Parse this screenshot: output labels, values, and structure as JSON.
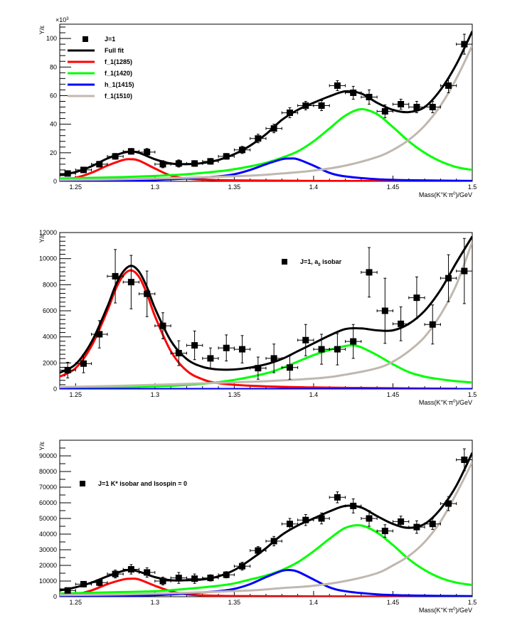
{
  "chart_data": [
    {
      "type": "scatter",
      "title": "",
      "xlabel": "Mass(K^{+}K^{-}π^{0})/GeV",
      "ylabel": "Y/ε",
      "y_exponent_label": "×10^{3}",
      "xlim": [
        1.24,
        1.5
      ],
      "ylim": [
        0,
        110
      ],
      "x_ticks": [
        "1.25",
        "1.3",
        "1.35",
        "1.4",
        "1.45",
        "1.5"
      ],
      "y_ticks": [
        "0",
        "20",
        "40",
        "60",
        "80",
        "100"
      ],
      "legend_position": "top-left",
      "legend": [
        {
          "label": "J=1",
          "kind": "marker"
        },
        {
          "label": "Full fit",
          "kind": "line",
          "color": "#000000"
        },
        {
          "label": "f_1(1285)",
          "kind": "line",
          "color": "#ff0000"
        },
        {
          "label": "f_1(1420)",
          "kind": "line",
          "color": "#00ff00"
        },
        {
          "label": "h_1(1415)",
          "kind": "line",
          "color": "#0000ff"
        },
        {
          "label": "f_1(1510)",
          "kind": "line",
          "color": "#c0b8b0"
        }
      ],
      "points": {
        "name": "J=1",
        "x": [
          1.245,
          1.255,
          1.265,
          1.275,
          1.285,
          1.295,
          1.305,
          1.315,
          1.325,
          1.335,
          1.345,
          1.355,
          1.365,
          1.375,
          1.385,
          1.395,
          1.405,
          1.415,
          1.425,
          1.435,
          1.445,
          1.455,
          1.465,
          1.475,
          1.485,
          1.495
        ],
        "y": [
          5.5,
          8,
          12,
          17.5,
          21,
          20.5,
          12,
          12.5,
          12.5,
          14,
          17.5,
          22,
          30,
          37,
          48,
          53,
          53,
          67,
          62,
          59,
          49,
          54,
          52,
          52,
          67,
          96
        ],
        "yerr": [
          1.5,
          1.5,
          2,
          2,
          2,
          2.5,
          2.5,
          2.5,
          2,
          2,
          2,
          2.5,
          3,
          3,
          3.5,
          3,
          3.5,
          3.5,
          4.5,
          5,
          4.5,
          3.5,
          4,
          4,
          5,
          7
        ]
      },
      "series": [
        {
          "name": "Full fit",
          "color": "#000000",
          "x": [
            1.24,
            1.25,
            1.26,
            1.27,
            1.28,
            1.285,
            1.29,
            1.3,
            1.31,
            1.32,
            1.33,
            1.34,
            1.35,
            1.36,
            1.37,
            1.38,
            1.39,
            1.4,
            1.41,
            1.42,
            1.43,
            1.44,
            1.45,
            1.46,
            1.47,
            1.48,
            1.49,
            1.5
          ],
          "y": [
            4.5,
            6.5,
            10.5,
            16,
            20,
            20.8,
            20,
            15.5,
            12.5,
            12,
            12.8,
            15,
            19,
            25,
            33,
            43,
            50,
            55,
            59.5,
            63,
            61.5,
            55,
            50,
            48.5,
            52,
            64,
            82,
            105
          ]
        },
        {
          "name": "f_1(1285)",
          "color": "#ff0000",
          "x": [
            1.24,
            1.25,
            1.26,
            1.27,
            1.28,
            1.285,
            1.29,
            1.3,
            1.31,
            1.32,
            1.33,
            1.35,
            1.4,
            1.45,
            1.49
          ],
          "y": [
            1,
            2.5,
            6,
            11,
            15,
            15.5,
            14.5,
            9,
            4,
            2,
            1.2,
            0.7,
            0.3,
            0.2,
            0.1
          ]
        },
        {
          "name": "f_1(1420)",
          "color": "#00ff00",
          "x": [
            1.24,
            1.26,
            1.28,
            1.3,
            1.32,
            1.34,
            1.35,
            1.36,
            1.37,
            1.38,
            1.39,
            1.4,
            1.41,
            1.42,
            1.43,
            1.44,
            1.45,
            1.46,
            1.47,
            1.48,
            1.49,
            1.5
          ],
          "y": [
            2,
            2.5,
            3,
            3.8,
            5,
            7,
            8.5,
            10.5,
            13,
            16.5,
            21,
            28,
            37,
            46,
            50.5,
            47,
            38,
            28,
            20,
            14,
            10,
            8
          ]
        },
        {
          "name": "h_1(1415)",
          "color": "#0000ff",
          "x": [
            1.24,
            1.28,
            1.3,
            1.32,
            1.34,
            1.35,
            1.36,
            1.37,
            1.38,
            1.385,
            1.39,
            1.4,
            1.41,
            1.42,
            1.44,
            1.46,
            1.5
          ],
          "y": [
            0.2,
            0.5,
            1,
            2,
            3.5,
            5,
            8,
            12,
            15.5,
            16,
            15.5,
            11,
            6,
            3.5,
            1.5,
            0.8,
            0.3
          ]
        },
        {
          "name": "f_1(1510)",
          "color": "#c0b8b0",
          "x": [
            1.24,
            1.28,
            1.32,
            1.36,
            1.38,
            1.4,
            1.42,
            1.44,
            1.45,
            1.46,
            1.47,
            1.48,
            1.49,
            1.5
          ],
          "y": [
            1,
            1.5,
            2.5,
            4,
            5.5,
            7.5,
            11,
            17,
            22,
            29,
            39,
            53,
            72,
            95
          ]
        }
      ]
    },
    {
      "type": "scatter",
      "title": "",
      "xlabel": "Mass(K^{+}K^{-}π^{0})/GeV",
      "ylabel": "Y/ε",
      "xlim": [
        1.24,
        1.5
      ],
      "ylim": [
        0,
        12000
      ],
      "x_ticks": [
        "1.25",
        "1.3",
        "1.35",
        "1.4",
        "1.45",
        "1.5"
      ],
      "y_ticks": [
        "0",
        "2000",
        "4000",
        "6000",
        "8000",
        "10000",
        "12000"
      ],
      "legend_position": "top-right",
      "legend": [
        {
          "label": "J=1, a_{0} isobar",
          "kind": "marker"
        }
      ],
      "points": {
        "name": "J=1, a0 isobar",
        "x": [
          1.245,
          1.255,
          1.265,
          1.275,
          1.285,
          1.295,
          1.305,
          1.315,
          1.325,
          1.335,
          1.345,
          1.355,
          1.365,
          1.375,
          1.385,
          1.395,
          1.405,
          1.415,
          1.425,
          1.435,
          1.445,
          1.455,
          1.465,
          1.475,
          1.485,
          1.495
        ],
        "y": [
          1450,
          1950,
          4200,
          8650,
          8200,
          7300,
          4850,
          2750,
          3350,
          2350,
          3150,
          3050,
          1600,
          2350,
          1650,
          3750,
          3050,
          3050,
          3650,
          8950,
          6000,
          5000,
          7000,
          4950,
          8500,
          9050
        ],
        "yerr": [
          600,
          700,
          1050,
          2050,
          2050,
          1750,
          1000,
          950,
          1100,
          800,
          1000,
          1050,
          850,
          1100,
          900,
          1200,
          1150,
          1200,
          1300,
          1900,
          2500,
          1300,
          1600,
          1500,
          1800,
          2500
        ]
      },
      "series": [
        {
          "name": "Full fit",
          "color": "#000000",
          "x": [
            1.24,
            1.25,
            1.26,
            1.27,
            1.275,
            1.28,
            1.285,
            1.29,
            1.295,
            1.3,
            1.31,
            1.32,
            1.33,
            1.34,
            1.35,
            1.36,
            1.37,
            1.38,
            1.39,
            1.4,
            1.41,
            1.42,
            1.43,
            1.44,
            1.45,
            1.46,
            1.47,
            1.48,
            1.49,
            1.5
          ],
          "y": [
            1250,
            1900,
            3600,
            6300,
            7900,
            9000,
            9450,
            9000,
            7800,
            6200,
            3700,
            2300,
            1700,
            1500,
            1500,
            1650,
            1900,
            2300,
            2900,
            3500,
            4100,
            4600,
            4650,
            4500,
            4500,
            5000,
            6000,
            7600,
            9700,
            11700
          ]
        },
        {
          "name": "f_1(1285)",
          "color": "#ff0000",
          "x": [
            1.24,
            1.25,
            1.26,
            1.27,
            1.275,
            1.28,
            1.285,
            1.29,
            1.295,
            1.3,
            1.31,
            1.32,
            1.33,
            1.34,
            1.36,
            1.4,
            1.45,
            1.49
          ],
          "y": [
            950,
            1600,
            3300,
            6000,
            7600,
            8700,
            9100,
            8600,
            7300,
            5600,
            2900,
            1400,
            750,
            450,
            250,
            120,
            60,
            30
          ]
        },
        {
          "name": "f_1(1420)",
          "color": "#00ff00",
          "x": [
            1.24,
            1.3,
            1.33,
            1.35,
            1.37,
            1.38,
            1.39,
            1.4,
            1.41,
            1.42,
            1.425,
            1.43,
            1.44,
            1.45,
            1.46,
            1.47,
            1.48,
            1.49,
            1.5
          ],
          "y": [
            50,
            200,
            400,
            700,
            1200,
            1600,
            2100,
            2600,
            3000,
            3300,
            3350,
            3200,
            2600,
            1900,
            1300,
            950,
            750,
            600,
            500
          ]
        },
        {
          "name": "h_1(1415)",
          "color": "#0000ff",
          "x": [
            1.24,
            1.5
          ],
          "y": [
            0,
            0
          ]
        },
        {
          "name": "f_1(1510)",
          "color": "#c0b8b0",
          "x": [
            1.24,
            1.28,
            1.32,
            1.36,
            1.4,
            1.42,
            1.44,
            1.45,
            1.46,
            1.47,
            1.48,
            1.49,
            1.5
          ],
          "y": [
            150,
            250,
            400,
            550,
            800,
            1100,
            1600,
            2100,
            2900,
            4000,
            5700,
            8000,
            11300
          ]
        }
      ]
    },
    {
      "type": "scatter",
      "title": "",
      "xlabel": "Mass(K^{+}K^{-}π^{0})/GeV",
      "ylabel": "Y/ε",
      "xlim": [
        1.24,
        1.5
      ],
      "ylim": [
        0,
        100000
      ],
      "x_ticks": [
        "1.25",
        "1.3",
        "1.35",
        "1.4",
        "1.45",
        "1.5"
      ],
      "y_ticks": [
        "0",
        "10000",
        "20000",
        "30000",
        "40000",
        "50000",
        "60000",
        "70000",
        "80000",
        "90000"
      ],
      "legend_position": "top-left",
      "legend": [
        {
          "label": "J=1 K* isobar and Isospin = 0",
          "kind": "marker"
        }
      ],
      "points": {
        "name": "J=1 K* isobar and Isospin = 0",
        "x": [
          1.245,
          1.255,
          1.265,
          1.275,
          1.285,
          1.295,
          1.305,
          1.315,
          1.325,
          1.335,
          1.345,
          1.355,
          1.365,
          1.375,
          1.385,
          1.395,
          1.405,
          1.415,
          1.425,
          1.435,
          1.445,
          1.455,
          1.465,
          1.475,
          1.485,
          1.495
        ],
        "y": [
          4000,
          8000,
          9000,
          14500,
          17500,
          15500,
          10000,
          12000,
          11500,
          12000,
          14000,
          19500,
          29500,
          35500,
          46500,
          49000,
          50000,
          63500,
          58000,
          50000,
          42000,
          48000,
          44500,
          46500,
          59500,
          87500
        ],
        "yerr": [
          1500,
          1500,
          2000,
          2500,
          3000,
          3000,
          2500,
          3500,
          3000,
          2000,
          2000,
          2500,
          2500,
          3000,
          3500,
          3500,
          3500,
          3500,
          4500,
          5000,
          4000,
          3500,
          4000,
          3500,
          4500,
          7000
        ]
      },
      "series": [
        {
          "name": "Full fit",
          "color": "#000000",
          "x": [
            1.24,
            1.25,
            1.26,
            1.27,
            1.28,
            1.285,
            1.29,
            1.3,
            1.31,
            1.32,
            1.33,
            1.34,
            1.35,
            1.36,
            1.37,
            1.38,
            1.39,
            1.4,
            1.41,
            1.42,
            1.43,
            1.44,
            1.45,
            1.46,
            1.47,
            1.48,
            1.49,
            1.5
          ],
          "y": [
            4000,
            6000,
            9000,
            13000,
            16500,
            17000,
            16000,
            12500,
            10500,
            10500,
            11000,
            13000,
            17000,
            23500,
            31000,
            39500,
            45500,
            50000,
            54500,
            58000,
            57000,
            51500,
            46500,
            44000,
            46500,
            56000,
            71000,
            92000
          ]
        },
        {
          "name": "f_1(1285)",
          "color": "#ff0000",
          "x": [
            1.24,
            1.25,
            1.26,
            1.27,
            1.28,
            1.285,
            1.29,
            1.3,
            1.31,
            1.32,
            1.33,
            1.35,
            1.4,
            1.45,
            1.49
          ],
          "y": [
            500,
            1500,
            4000,
            8000,
            11000,
            11500,
            11000,
            7000,
            3500,
            1500,
            800,
            400,
            200,
            100,
            50
          ]
        },
        {
          "name": "f_1(1420)",
          "color": "#00ff00",
          "x": [
            1.24,
            1.26,
            1.28,
            1.3,
            1.32,
            1.34,
            1.35,
            1.36,
            1.37,
            1.38,
            1.39,
            1.4,
            1.41,
            1.42,
            1.43,
            1.44,
            1.45,
            1.46,
            1.47,
            1.48,
            1.49,
            1.5
          ],
          "y": [
            2000,
            2500,
            3000,
            3500,
            5000,
            7000,
            8500,
            11000,
            13500,
            17000,
            22000,
            29000,
            37000,
            44000,
            45500,
            41000,
            33000,
            24000,
            17000,
            12000,
            9000,
            7500
          ]
        },
        {
          "name": "h_1(1415)",
          "color": "#0000ff",
          "x": [
            1.24,
            1.28,
            1.3,
            1.32,
            1.34,
            1.35,
            1.36,
            1.37,
            1.38,
            1.385,
            1.39,
            1.4,
            1.41,
            1.42,
            1.44,
            1.46,
            1.5
          ],
          "y": [
            200,
            500,
            1000,
            2000,
            3500,
            5000,
            8000,
            12500,
            16500,
            17000,
            16000,
            11000,
            6000,
            3500,
            1500,
            800,
            300
          ]
        },
        {
          "name": "f_1(1510)",
          "color": "#c0b8b0",
          "x": [
            1.24,
            1.28,
            1.32,
            1.36,
            1.38,
            1.4,
            1.42,
            1.44,
            1.45,
            1.46,
            1.47,
            1.48,
            1.49,
            1.5
          ],
          "y": [
            1000,
            1500,
            2500,
            4000,
            5500,
            7000,
            10000,
            15000,
            20000,
            26000,
            35000,
            48000,
            66000,
            86000
          ]
        }
      ]
    }
  ]
}
